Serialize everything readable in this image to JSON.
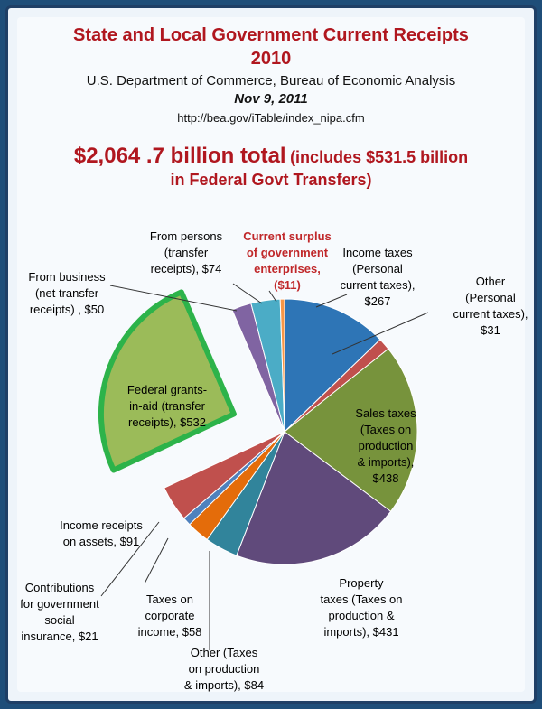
{
  "header": {
    "title_line1": "State and Local Government Current Receipts",
    "title_line2": "2010",
    "source": "U.S. Department of Commerce, Bureau of Economic Analysis",
    "date": "Nov 9, 2011",
    "url": "http://bea.gov/iTable/index_nipa.cfm",
    "total_main": "$2,064 .7 billion total",
    "total_note_line1": "(includes $531.5 billion",
    "total_note_line2": "in Federal Govt Transfers)"
  },
  "chart_data": {
    "type": "pie",
    "title": "State and Local Government Current Receipts 2010",
    "total": 2064.7,
    "slices": [
      {
        "label_lines": [
          "Income taxes",
          "(Personal",
          "current taxes),",
          "$267"
        ],
        "value": 267,
        "color": "#2e75b6"
      },
      {
        "label_lines": [
          "Other",
          "(Personal",
          "current taxes),",
          "$31"
        ],
        "value": 31,
        "color": "#c0504d"
      },
      {
        "label_lines": [
          "Sales taxes",
          "(Taxes on",
          "production",
          "& imports),",
          "$438"
        ],
        "value": 438,
        "color": "#77933c"
      },
      {
        "label_lines": [
          "Property",
          "taxes (Taxes on",
          "production &",
          "imports), $431"
        ],
        "value": 431,
        "color": "#604a7b"
      },
      {
        "label_lines": [
          "Other (Taxes",
          "on production",
          "& imports), $84"
        ],
        "value": 84,
        "color": "#31849b"
      },
      {
        "label_lines": [
          "Taxes on",
          "corporate",
          "income, $58"
        ],
        "value": 58,
        "color": "#e46c0a"
      },
      {
        "label_lines": [
          "Contributions",
          "for government",
          "social",
          "insurance, $21"
        ],
        "value": 21,
        "color": "#4f81bd"
      },
      {
        "label_lines": [
          "Income receipts",
          "on assets, $91"
        ],
        "value": 91,
        "color": "#c0504d"
      },
      {
        "label_lines": [
          "Federal grants-",
          "in-aid (transfer",
          "receipts), $532"
        ],
        "value": 532,
        "color": "#9bbb59",
        "exploded": true,
        "outline": "#2db34a"
      },
      {
        "label_lines": [
          "From business",
          "(net transfer",
          "receipts) , $50"
        ],
        "value": 50,
        "color": "#8064a2"
      },
      {
        "label_lines": [
          "From persons",
          "(transfer",
          "receipts), $74"
        ],
        "value": 74,
        "color": "#4bacc6"
      },
      {
        "label_lines": [
          "Current surplus",
          "of government",
          "enterprises,",
          "($11)"
        ],
        "value": 11,
        "color": "#f79646",
        "label_color": "#c0282a"
      }
    ]
  }
}
